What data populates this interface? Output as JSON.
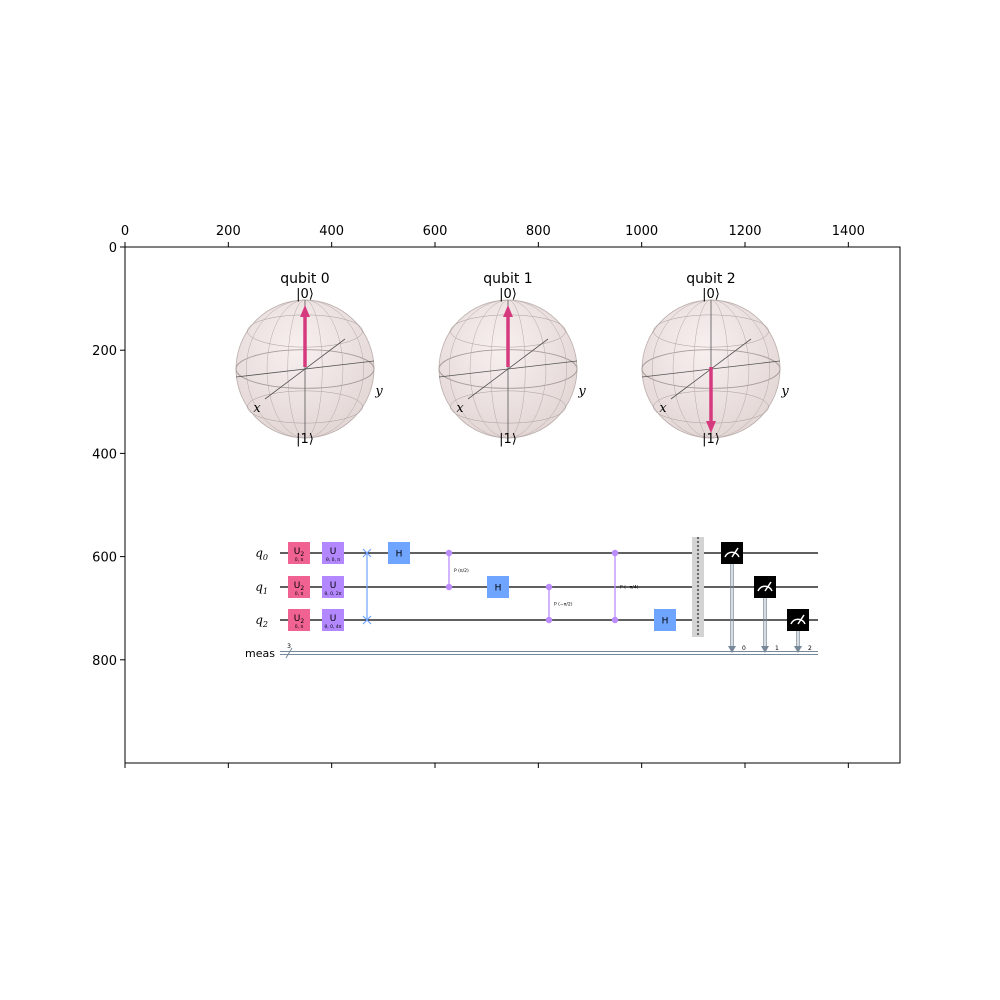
{
  "axes": {
    "x_ticks": [
      "0",
      "200",
      "400",
      "600",
      "800",
      "1000",
      "1200",
      "1400"
    ],
    "x_tick_values": [
      0,
      200,
      400,
      600,
      800,
      1000,
      1200,
      1400
    ],
    "y_ticks": [
      "0",
      "200",
      "400",
      "600",
      "800"
    ],
    "y_tick_values": [
      0,
      200,
      400,
      600,
      800
    ],
    "x_range": [
      0,
      1500
    ],
    "y_range": [
      0,
      1000
    ],
    "y_inverted": true
  },
  "spheres": [
    {
      "title": "qubit 0",
      "ket_top": "|0⟩",
      "ket_bottom": "|1⟩",
      "x_label": "x",
      "y_label": "y",
      "state": "0"
    },
    {
      "title": "qubit 1",
      "ket_top": "|0⟩",
      "ket_bottom": "|1⟩",
      "x_label": "x",
      "y_label": "y",
      "state": "0"
    },
    {
      "title": "qubit 2",
      "ket_top": "|0⟩",
      "ket_bottom": "|1⟩",
      "x_label": "x",
      "y_label": "y",
      "state": "1"
    }
  ],
  "circuit": {
    "wires": [
      {
        "label": "q",
        "sub": "0"
      },
      {
        "label": "q",
        "sub": "1"
      },
      {
        "label": "q",
        "sub": "2"
      }
    ],
    "classical": {
      "label": "meas",
      "size": "3"
    },
    "gates": {
      "u2_label": "U",
      "u2_sub": "2",
      "u2_params": [
        "0, π",
        "0, π",
        "0, π"
      ],
      "u_label": "U",
      "u_params": [
        "θ, 0, π",
        "θ, 0, 2π",
        "θ, 0, 4π"
      ],
      "h_label": "H",
      "cp1_label": "P (π/2)",
      "cp2_label": "P (−π/2)",
      "cp3_label": "P (−π/4)",
      "meas_bits": [
        "0",
        "1",
        "2"
      ]
    }
  },
  "colors": {
    "u2": "#f06292",
    "u": "#b388ff",
    "h": "#6fa4ff",
    "ctrl": "#bb8bff",
    "swap": "#6fa4ff",
    "measure": "#000000",
    "arrow": "#d63a7e",
    "classical": "#778899",
    "barrier": "#d3d3d3"
  }
}
